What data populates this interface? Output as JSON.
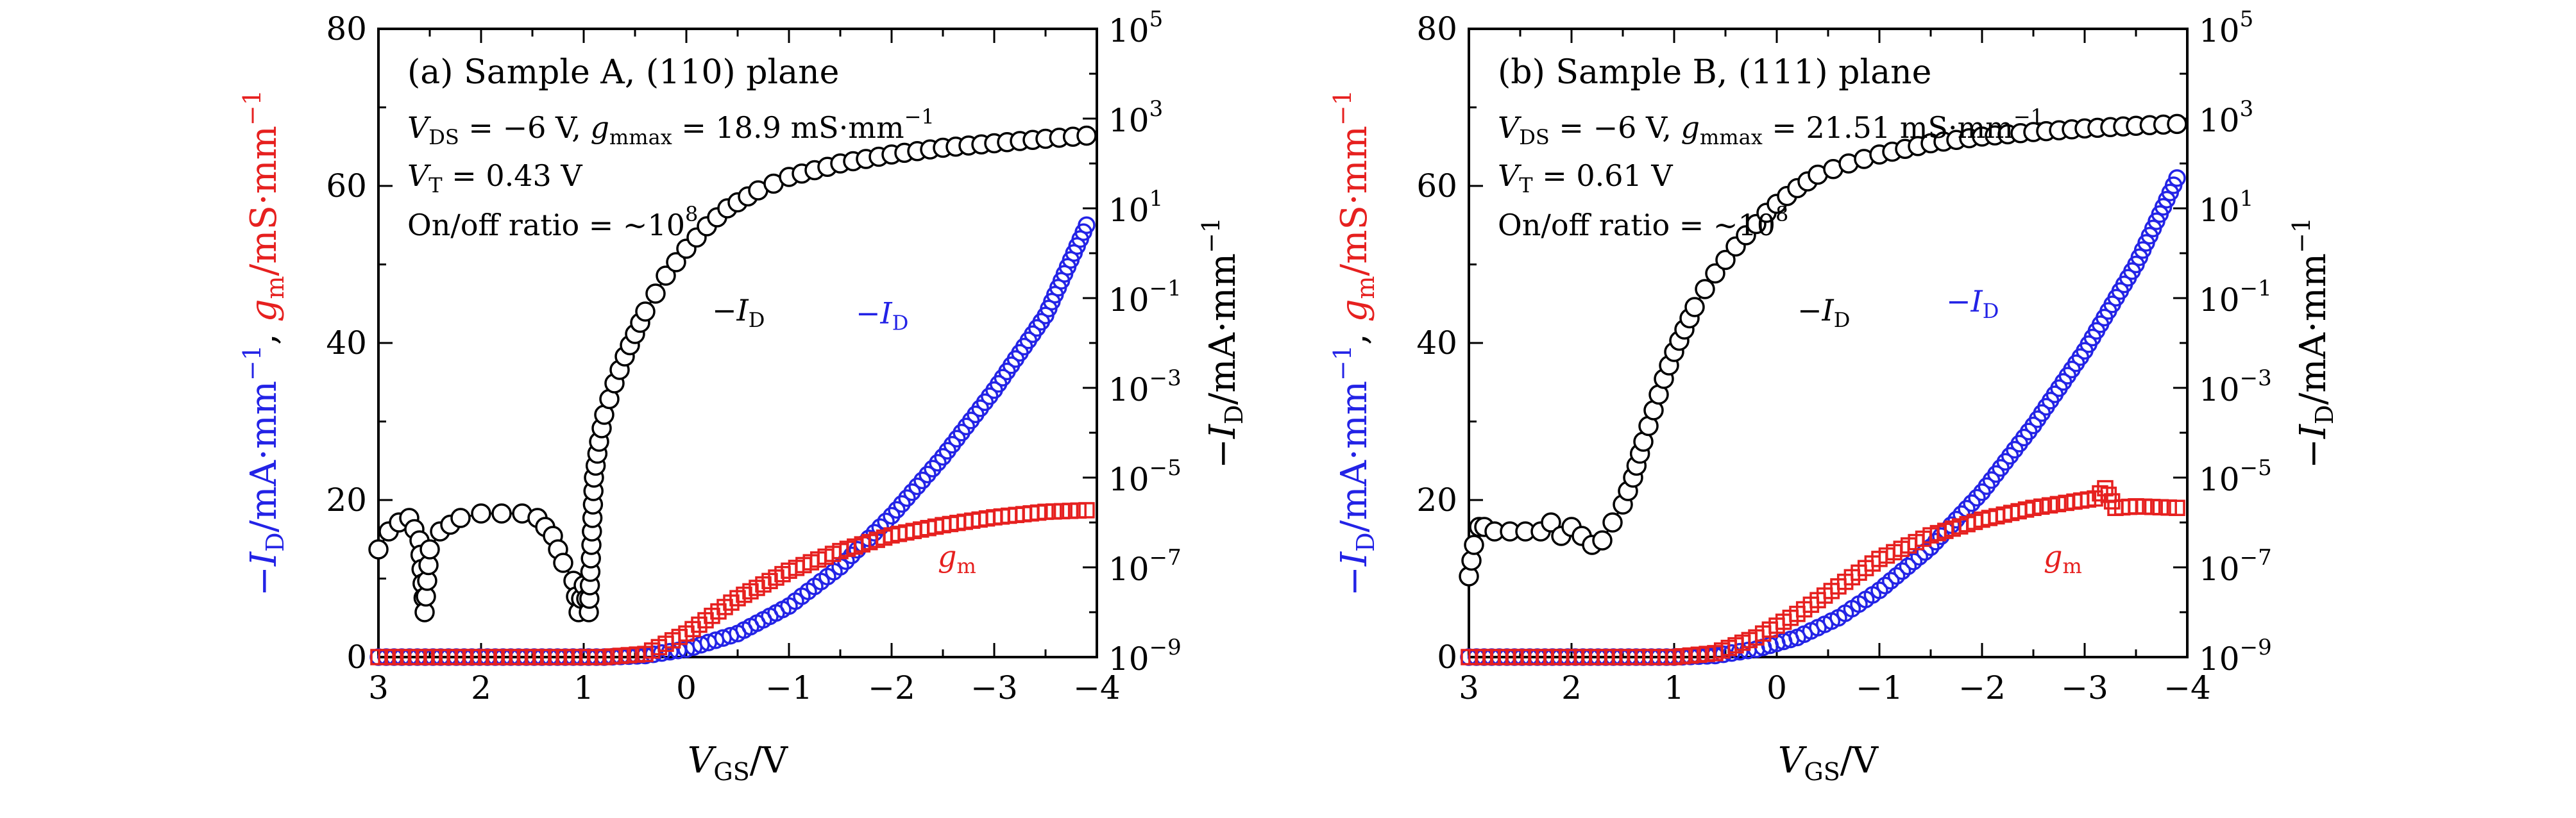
{
  "chart_data": [
    {
      "type": "scatter",
      "panel_label": "(a) Sample A, (110) plane",
      "annotations": {
        "vds_label": "V",
        "vds_sub": "DS",
        "vds_text": " = −6 V, ",
        "gm_label": "g",
        "gm_sub": "mmax",
        "gm_text": " = 18.9 mS·mm",
        "gm_exp": "−1",
        "vt_label": "V",
        "vt_sub": "T",
        "vt_text": " = 0.43 V",
        "onoff_text": "On/off ratio = ~10",
        "onoff_exp": "8"
      },
      "curve_labels": {
        "black": {
          "prefix": "−",
          "main": "I",
          "sub": "D"
        },
        "blue": {
          "prefix": "−",
          "main": "I",
          "sub": "D"
        },
        "red": {
          "main": "g",
          "sub": "m"
        }
      },
      "x_axis": {
        "reversed": true,
        "range": [
          3,
          -4
        ],
        "ticks": [
          3,
          2,
          1,
          0,
          -1,
          -2,
          -3,
          -4
        ],
        "tick_labels": [
          "3",
          "2",
          "1",
          "0",
          "−1",
          "−2",
          "−3",
          "−4"
        ]
      },
      "y_left": {
        "range": [
          0,
          80
        ],
        "ticks": [
          0,
          20,
          40,
          60,
          80
        ],
        "tick_labels": [
          "0",
          "20",
          "40",
          "60",
          "80"
        ]
      },
      "y_right": {
        "scale": "log",
        "range_exp": [
          -9,
          5
        ],
        "ticks": [
          -9,
          -7,
          -5,
          -3,
          -1,
          1,
          3,
          5
        ],
        "tick_bases": [
          "10",
          "10",
          "10",
          "10",
          "10",
          "10",
          "10",
          "10"
        ],
        "tick_exps": [
          "−9",
          "−7",
          "−5",
          "−3",
          "−1",
          "1",
          "3",
          "5"
        ]
      },
      "series": [
        {
          "color": "#2323e6",
          "marker": "circle",
          "axis": "left",
          "x": [
            3.0,
            0.8,
            0.4,
            0.0,
            -0.5,
            -1.0,
            -1.5,
            -2.0,
            -2.5,
            -3.0,
            -3.5,
            -3.9
          ],
          "y": [
            0.0,
            0.0,
            0.2,
            1.0,
            3.0,
            6.5,
            11.5,
            18.0,
            25.5,
            34.0,
            43.5,
            55.0
          ]
        },
        {
          "color": "#e6201f",
          "marker": "square",
          "axis": "left",
          "x": [
            3.0,
            0.8,
            0.4,
            0.0,
            -0.5,
            -1.0,
            -1.5,
            -2.0,
            -2.5,
            -3.0,
            -3.5,
            -3.9
          ],
          "y": [
            0.0,
            0.0,
            0.4,
            3.0,
            7.5,
            11.0,
            13.5,
            15.5,
            16.8,
            17.8,
            18.5,
            18.7
          ]
        },
        {
          "color": "#000000",
          "marker": "circle",
          "axis": "right",
          "x": [
            3.0,
            2.9,
            2.8,
            2.7,
            2.6,
            2.55,
            2.5,
            2.4,
            2.2,
            2.0,
            1.8,
            1.6,
            1.45,
            1.3,
            1.2,
            1.1,
            1.05,
            1.0,
            0.95,
            0.9,
            0.85,
            0.8,
            0.7,
            0.6,
            0.5,
            0.4,
            0.3,
            0.2,
            0.1,
            0.0,
            -0.2,
            -0.4,
            -0.7,
            -1.0,
            -1.5,
            -2.0,
            -2.5,
            -3.0,
            -3.5,
            -3.9
          ],
          "y": [
            -6.6,
            -6.2,
            -6.0,
            -5.9,
            -6.4,
            -8.0,
            -6.6,
            -6.2,
            -5.9,
            -5.8,
            -5.8,
            -5.8,
            -5.9,
            -6.3,
            -6.9,
            -7.3,
            -8.0,
            -7.4,
            -8.0,
            -5.0,
            -4.2,
            -3.6,
            -2.9,
            -2.3,
            -1.8,
            -1.3,
            -0.9,
            -0.5,
            -0.2,
            0.1,
            0.6,
            1.0,
            1.4,
            1.7,
            2.0,
            2.2,
            2.35,
            2.45,
            2.55,
            2.62
          ]
        }
      ]
    },
    {
      "type": "scatter",
      "panel_label": "(b) Sample B, (111) plane",
      "annotations": {
        "vds_label": "V",
        "vds_sub": "DS",
        "vds_text": " = −6 V, ",
        "gm_label": "g",
        "gm_sub": "mmax",
        "gm_text": " = 21.51 mS·mm",
        "gm_exp": "−1",
        "vt_label": "V",
        "vt_sub": "T",
        "vt_text": " = 0.61 V",
        "onoff_text": "On/off ratio = ~10",
        "onoff_exp": "8"
      },
      "curve_labels": {
        "black": {
          "prefix": "−",
          "main": "I",
          "sub": "D"
        },
        "blue": {
          "prefix": "−",
          "main": "I",
          "sub": "D"
        },
        "red": {
          "main": "g",
          "sub": "m"
        }
      },
      "x_axis": {
        "reversed": true,
        "range": [
          3,
          -4
        ],
        "ticks": [
          3,
          2,
          1,
          0,
          -1,
          -2,
          -3,
          -4
        ],
        "tick_labels": [
          "3",
          "2",
          "1",
          "0",
          "−1",
          "−2",
          "−3",
          "−4"
        ]
      },
      "y_left": {
        "range": [
          0,
          80
        ],
        "ticks": [
          0,
          20,
          40,
          60,
          80
        ],
        "tick_labels": [
          "0",
          "20",
          "40",
          "60",
          "80"
        ]
      },
      "y_right": {
        "scale": "log",
        "range_exp": [
          -9,
          5
        ],
        "ticks": [
          -9,
          -7,
          -5,
          -3,
          -1,
          1,
          3,
          5
        ],
        "tick_bases": [
          "10",
          "10",
          "10",
          "10",
          "10",
          "10",
          "10",
          "10"
        ],
        "tick_exps": [
          "−9",
          "−7",
          "−5",
          "−3",
          "−1",
          "1",
          "3",
          "5"
        ]
      },
      "series": [
        {
          "color": "#2323e6",
          "marker": "circle",
          "axis": "left",
          "x": [
            3.0,
            1.0,
            0.6,
            0.2,
            -0.2,
            -0.6,
            -1.0,
            -1.5,
            -2.0,
            -2.5,
            -3.0,
            -3.5,
            -3.9
          ],
          "y": [
            0.0,
            0.0,
            0.2,
            1.0,
            2.5,
            5.0,
            8.5,
            14.0,
            21.0,
            29.5,
            39.0,
            50.0,
            61.0
          ]
        },
        {
          "color": "#e6201f",
          "marker": "square",
          "axis": "left",
          "x": [
            3.0,
            1.0,
            0.6,
            0.2,
            -0.2,
            -0.6,
            -1.0,
            -1.5,
            -2.0,
            -2.5,
            -2.9,
            -3.1,
            -3.2,
            -3.3,
            -3.5,
            -3.9
          ],
          "y": [
            0.0,
            0.0,
            0.5,
            2.5,
            5.5,
            9.0,
            12.5,
            15.5,
            17.5,
            19.0,
            19.8,
            20.2,
            21.5,
            19.0,
            19.2,
            19.0
          ]
        },
        {
          "color": "#000000",
          "marker": "circle",
          "axis": "right",
          "x": [
            3.0,
            2.95,
            2.9,
            2.85,
            2.75,
            2.3,
            2.2,
            2.1,
            2.0,
            1.9,
            1.8,
            1.7,
            1.6,
            1.5,
            1.4,
            1.3,
            1.2,
            1.1,
            1.0,
            0.9,
            0.8,
            0.7,
            0.6,
            0.5,
            0.4,
            0.3,
            0.2,
            0.1,
            0.0,
            -0.2,
            -0.4,
            -0.7,
            -1.0,
            -1.5,
            -2.0,
            -2.5,
            -3.0,
            -3.5,
            -3.9
          ],
          "y": [
            -7.2,
            -6.5,
            -6.1,
            -6.1,
            -6.2,
            -6.2,
            -6.0,
            -6.3,
            -6.1,
            -6.3,
            -6.5,
            -6.4,
            -6.0,
            -5.6,
            -5.0,
            -4.2,
            -3.5,
            -2.8,
            -2.2,
            -1.7,
            -1.2,
            -0.8,
            -0.45,
            -0.15,
            0.15,
            0.4,
            0.65,
            0.9,
            1.1,
            1.45,
            1.75,
            2.0,
            2.2,
            2.45,
            2.6,
            2.7,
            2.78,
            2.84,
            2.88
          ]
        }
      ]
    }
  ],
  "axis_titles": {
    "left": [
      {
        "text": "−",
        "color": "#2323e6"
      },
      {
        "text": "I",
        "color": "#2323e6",
        "italic": true
      },
      {
        "text": "D",
        "color": "#2323e6",
        "sub": true
      },
      {
        "text": "/mA·mm",
        "color": "#2323e6"
      },
      {
        "text": "−1",
        "color": "#2323e6",
        "sup": true
      },
      {
        "text": ", ",
        "color": "#000000"
      },
      {
        "text": "g",
        "color": "#e6201f",
        "italic": true
      },
      {
        "text": "m",
        "color": "#e6201f",
        "sub": true
      },
      {
        "text": "/mS·mm",
        "color": "#e6201f"
      },
      {
        "text": "−1",
        "color": "#e6201f",
        "sup": true
      }
    ],
    "right": [
      {
        "text": "−",
        "color": "#000000"
      },
      {
        "text": "I",
        "color": "#000000",
        "italic": true
      },
      {
        "text": "D",
        "color": "#000000",
        "sub": true
      },
      {
        "text": "/mA·mm",
        "color": "#000000"
      },
      {
        "text": "−1",
        "color": "#000000",
        "sup": true
      }
    ],
    "x": [
      {
        "text": "V",
        "color": "#000000",
        "italic": true
      },
      {
        "text": "GS",
        "color": "#000000",
        "sub": true
      },
      {
        "text": "/V",
        "color": "#000000"
      }
    ]
  }
}
